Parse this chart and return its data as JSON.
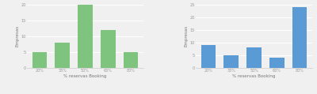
{
  "left": {
    "categories": [
      "20%",
      "35%",
      "50%",
      "65%",
      "80%"
    ],
    "values": [
      5,
      8,
      20,
      12,
      5
    ],
    "bar_color": "#7ec47f",
    "xlabel": "% reservas Booking",
    "ylabel": "Empresas",
    "ylim": [
      0,
      20
    ],
    "yticks": [
      0,
      5,
      10,
      15,
      20
    ]
  },
  "right": {
    "categories": [
      "20%",
      "35%",
      "50%",
      "65%",
      "80%"
    ],
    "values": [
      9,
      5,
      8,
      4,
      24
    ],
    "bar_color": "#5b9bd5",
    "xlabel": "% reservas Booking",
    "ylabel": "Empresas",
    "ylim": [
      0,
      25
    ],
    "yticks": [
      0,
      5,
      10,
      15,
      20,
      25
    ]
  },
  "background_color": "#f0f0f0",
  "label_fontsize": 4.0,
  "tick_fontsize": 3.5,
  "grid_color": "#ffffff"
}
